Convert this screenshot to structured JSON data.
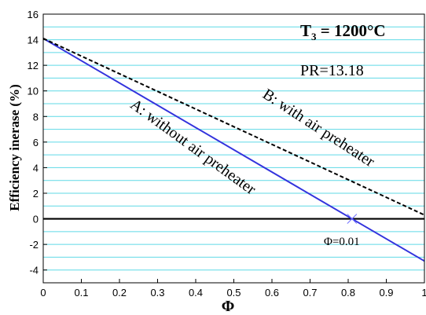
{
  "chart_data": {
    "type": "line",
    "xlabel": "Φ",
    "ylabel": "Efficiency inerase (%)",
    "xlim": [
      0,
      1
    ],
    "ylim": [
      -5,
      16
    ],
    "x_ticks": [
      "0",
      "0.1",
      "0.2",
      "0.3",
      "0.4",
      "0.5",
      "0.6",
      "0.7",
      "0.8",
      "0.9",
      "1"
    ],
    "y_ticks": [
      "16",
      "14",
      "12",
      "10",
      "8",
      "6",
      "4",
      "2",
      "0",
      "-2",
      "-4"
    ],
    "grid": "horizontal",
    "series": [
      {
        "name": "A: without air preheater",
        "color": "#3333dd",
        "style": "solid",
        "x": [
          0,
          0.81,
          1
        ],
        "y": [
          14.1,
          0,
          -3.3
        ]
      },
      {
        "name": "B: with air preheater",
        "color": "#000000",
        "style": "dashed",
        "x": [
          0,
          1
        ],
        "y": [
          14.1,
          0.3
        ]
      }
    ],
    "annotations": {
      "t3_prefix": "T",
      "t3_sub": "3",
      "t3_rest": " = 1200°C",
      "pr": "PR=13.18",
      "phi_note": "Φ=0.01"
    }
  }
}
